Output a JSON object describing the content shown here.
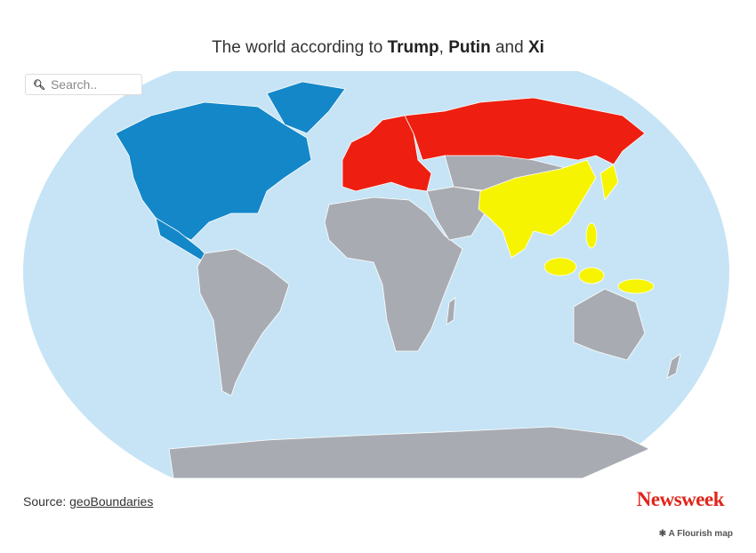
{
  "title": {
    "prefix": "The world according to ",
    "name1": "Trump",
    "sep1": ", ",
    "name2": "Putin",
    "sep2": " and ",
    "name3": "Xi"
  },
  "search": {
    "placeholder": "Search..",
    "value": "",
    "icon": "search-icon"
  },
  "footer": {
    "source_label": "Source: ",
    "source_link": "geoBoundaries",
    "logo": "Newsweek",
    "credit": "A Flourish map",
    "credit_icon": "flourish-asterisk-icon"
  },
  "colors": {
    "ocean": "#c6e4f5",
    "trump": "#1487c9",
    "putin": "#ee1f10",
    "xi": "#f6f400",
    "other": "#a8acb2",
    "brand": "#e0251b"
  }
}
